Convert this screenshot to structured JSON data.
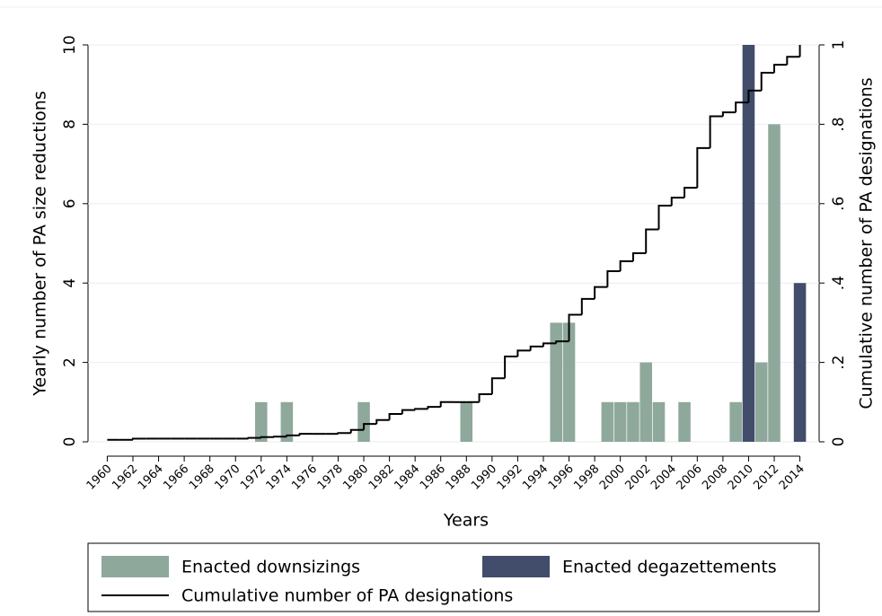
{
  "chart_data": {
    "type": "bar_line",
    "xlabel": "Years",
    "ylabel": "Yearly number of PA size reductions",
    "y2label": "Cumulative number of PA designations",
    "xlim": [
      1958.5,
      2015.5
    ],
    "xticks": [
      1960,
      1962,
      1964,
      1966,
      1968,
      1970,
      1972,
      1974,
      1976,
      1978,
      1980,
      1982,
      1984,
      1986,
      1988,
      1990,
      1992,
      1994,
      1996,
      1998,
      2000,
      2002,
      2004,
      2006,
      2008,
      2010,
      2012,
      2014
    ],
    "ylim": [
      0,
      10
    ],
    "yticks": [
      0,
      2,
      4,
      6,
      8,
      10
    ],
    "y2lim": [
      0,
      1
    ],
    "y2ticks": [
      0,
      {
        "value": 0.2,
        "label": ".2"
      },
      {
        "value": 0.4,
        "label": ".4"
      },
      {
        "value": 0.6,
        "label": ".6"
      },
      {
        "value": 0.8,
        "label": ".8"
      },
      1
    ],
    "grid": true,
    "legend": "bottom",
    "series": [
      {
        "name": "Enacted downsizings",
        "type": "bar",
        "color": "#8fa89c",
        "x": [
          1972,
          1974,
          1980,
          1988,
          1995,
          1996,
          1999,
          2000,
          2001,
          2002,
          2003,
          2005,
          2009,
          2011,
          2012
        ],
        "values": [
          1,
          1,
          1,
          1,
          3,
          3,
          1,
          1,
          1,
          2,
          1,
          1,
          1,
          2,
          8
        ]
      },
      {
        "name": "Enacted degazettements",
        "type": "bar",
        "color": "#414d6b",
        "x": [
          2010,
          2014
        ],
        "values": [
          10,
          4
        ]
      },
      {
        "name": "Cumulative number of PA designations",
        "type": "step",
        "color": "#000000",
        "axis": "y2",
        "x": [
          1960,
          1961,
          1962,
          1963,
          1964,
          1965,
          1966,
          1967,
          1968,
          1969,
          1970,
          1971,
          1972,
          1973,
          1974,
          1975,
          1976,
          1977,
          1978,
          1979,
          1980,
          1981,
          1982,
          1983,
          1984,
          1985,
          1986,
          1987,
          1988,
          1989,
          1990,
          1991,
          1992,
          1993,
          1994,
          1995,
          1996,
          1997,
          1998,
          1999,
          2000,
          2001,
          2002,
          2003,
          2004,
          2005,
          2006,
          2007,
          2008,
          2009,
          2010,
          2011,
          2012,
          2013,
          2014
        ],
        "values": [
          0.005,
          0.005,
          0.008,
          0.008,
          0.008,
          0.008,
          0.008,
          0.008,
          0.008,
          0.008,
          0.008,
          0.01,
          0.012,
          0.013,
          0.016,
          0.02,
          0.02,
          0.02,
          0.022,
          0.03,
          0.045,
          0.055,
          0.07,
          0.08,
          0.083,
          0.088,
          0.1,
          0.1,
          0.1,
          0.12,
          0.16,
          0.215,
          0.23,
          0.24,
          0.248,
          0.253,
          0.32,
          0.36,
          0.39,
          0.43,
          0.455,
          0.475,
          0.535,
          0.595,
          0.615,
          0.64,
          0.74,
          0.82,
          0.83,
          0.855,
          0.885,
          0.93,
          0.95,
          0.97,
          1.0
        ]
      }
    ]
  }
}
